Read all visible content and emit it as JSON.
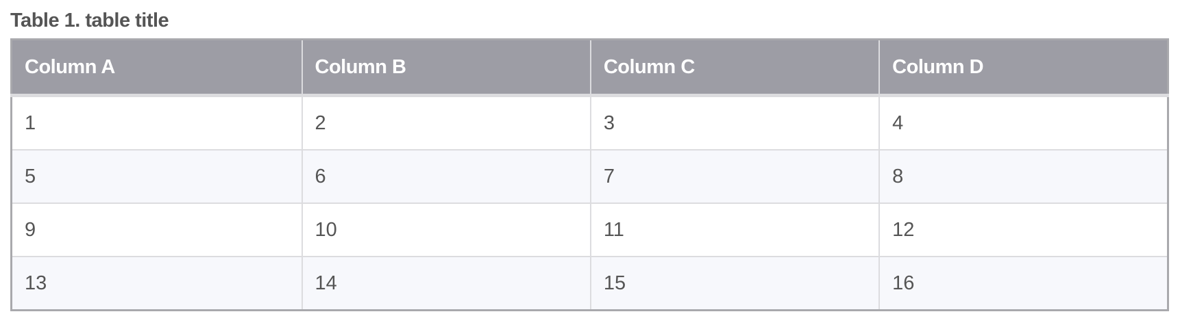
{
  "title": "Table 1. table title",
  "columns": [
    "Column A",
    "Column B",
    "Column C",
    "Column D"
  ],
  "rows": [
    [
      "1",
      "2",
      "3",
      "4"
    ],
    [
      "5",
      "6",
      "7",
      "8"
    ],
    [
      "9",
      "10",
      "11",
      "12"
    ],
    [
      "13",
      "14",
      "15",
      "16"
    ]
  ],
  "colors": {
    "header_bg": "#9d9da5",
    "alt_row_bg": "#f7f8fc",
    "text": "#555555"
  }
}
